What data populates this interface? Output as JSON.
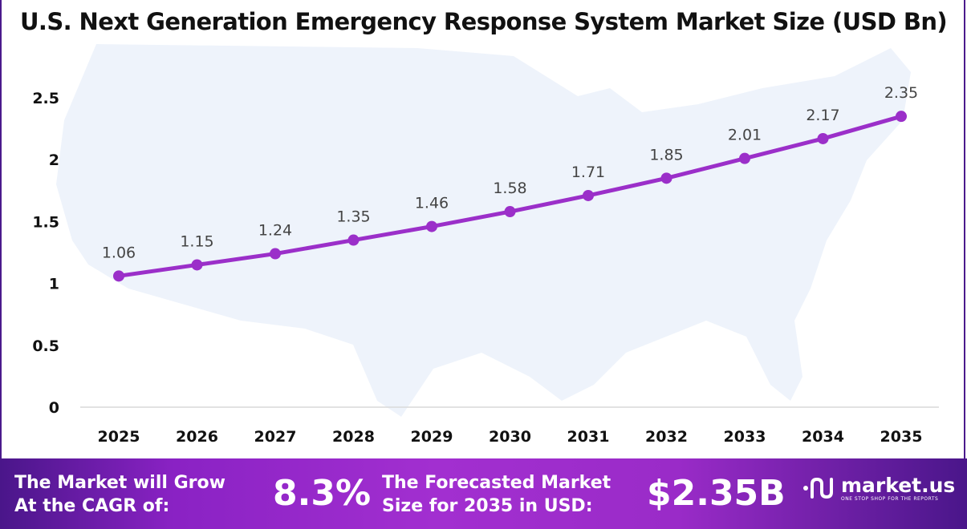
{
  "chart_data": {
    "type": "line",
    "title": "U.S. Next Generation Emergency Response System Market Size (USD Bn)",
    "categories": [
      "2025",
      "2026",
      "2027",
      "2028",
      "2029",
      "2030",
      "2031",
      "2032",
      "2033",
      "2034",
      "2035"
    ],
    "values": [
      1.06,
      1.15,
      1.24,
      1.35,
      1.46,
      1.58,
      1.71,
      1.85,
      2.01,
      2.17,
      2.35
    ],
    "data_labels": [
      "1.06",
      "1.15",
      "1.24",
      "1.35",
      "1.46",
      "1.58",
      "1.71",
      "1.85",
      "2.01",
      "2.17",
      "2.35"
    ],
    "yticks": [
      "0",
      "0.5",
      "1",
      "1.5",
      "2",
      "2.5"
    ],
    "ylim": [
      0,
      2.5
    ],
    "xlabel": "",
    "ylabel": "",
    "grid": false,
    "line_color": "#9b2fc9",
    "background": "map of United States (light blue)"
  },
  "footer": {
    "cagr_label": "The Market will Grow At the CAGR of:",
    "cagr_label_1": "The Market will Grow",
    "cagr_label_2": "At the CAGR of:",
    "cagr_value": "8.3%",
    "forecast_label_1": "The Forecasted Market",
    "forecast_label_2": "Size for 2035 in USD:",
    "forecast_value": "$2.35B",
    "logo_name": "market.us",
    "logo_tagline": "ONE STOP SHOP FOR THE REPORTS"
  },
  "colors": {
    "accent": "#9b2fc9",
    "footer": "#a22fd0",
    "frame": "#4a1a8c",
    "map": "#eef3fb"
  }
}
